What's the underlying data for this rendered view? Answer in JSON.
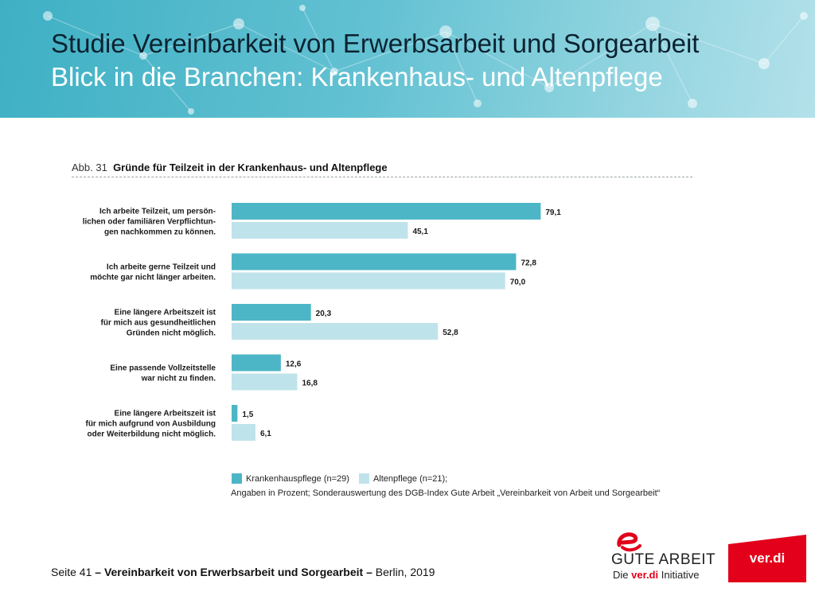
{
  "header": {
    "title_line1": "Studie Vereinbarkeit von Erwerbsarbeit und Sorgearbeit",
    "title_line2": "Blick in die Branchen: Krankenhaus- und Altenpflege"
  },
  "figure": {
    "number": "Abb. 31",
    "title": "Gründe für Teilzeit in der Krankenhaus- und Altenpflege"
  },
  "chart_data": {
    "type": "bar",
    "orientation": "horizontal",
    "title": "Gründe für Teilzeit in der Krankenhaus- und Altenpflege",
    "xlim": [
      0,
      100
    ],
    "categories": [
      [
        "Ich arbeite Teilzeit, um persön-",
        "lichen oder familiären Verpflichtun-",
        "gen nachkommen zu können."
      ],
      [
        "Ich arbeite gerne Teilzeit und",
        "möchte gar nicht länger arbeiten."
      ],
      [
        "Eine längere Arbeitszeit ist",
        "für mich aus gesundheitlichen",
        "Gründen nicht möglich."
      ],
      [
        "Eine passende Vollzeitstelle",
        "war nicht zu finden."
      ],
      [
        "Eine längere Arbeitszeit ist",
        "für mich aufgrund von Ausbildung",
        "oder Weiterbildung nicht möglich."
      ]
    ],
    "series": [
      {
        "name": "Krankenhauspflege (n=29)",
        "color": "#4db6c6",
        "values": [
          79.1,
          72.8,
          20.3,
          12.6,
          1.5
        ],
        "labels": [
          "79,1",
          "72,8",
          "20,3",
          "12,6",
          "1,5"
        ]
      },
      {
        "name": "Altenpflege (n=21);",
        "color": "#bfe3ea",
        "values": [
          45.1,
          70.0,
          52.8,
          16.8,
          6.1
        ],
        "labels": [
          "45,1",
          "70,0",
          "52,8",
          "16,8",
          "6,1"
        ]
      }
    ],
    "note": "Angaben in Prozent; Sonderauswertung des DGB-Index Gute Arbeit „Vereinbarkeit von Arbeit und Sorgearbeit“"
  },
  "footer": {
    "page": "Seite 41",
    "sep1": "–",
    "study": "Vereinbarkeit von Erwerbsarbeit und Sorgearbeit",
    "sep2": "–",
    "place_year": "Berlin, 2019"
  },
  "logos": {
    "gute_arbeit": "GUTE ARBEIT",
    "sub_die": "Die",
    "sub_verdi": "ver.di",
    "sub_initiative": "Initiative",
    "verdi": "ver.di",
    "verdi_color": "#e2001a"
  }
}
